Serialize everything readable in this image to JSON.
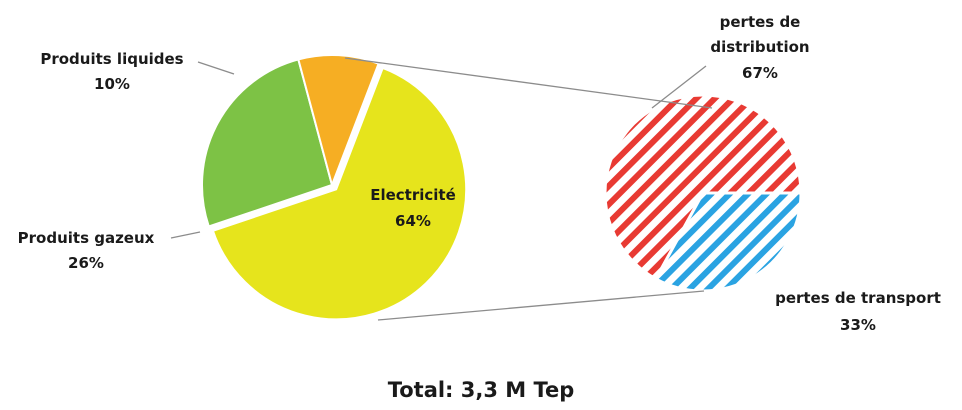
{
  "chart_data": [
    {
      "type": "pie",
      "categories": [
        "Electricité",
        "Produits liquides",
        "Produits gazeux"
      ],
      "values": [
        64,
        10,
        26
      ],
      "labels": [
        "Electricité 64%",
        "Produits liquides 10%",
        "Produits gazeux 26%"
      ],
      "colors": [
        "#e6e41c",
        "#f6ae23",
        "#7dc245"
      ],
      "exploded_category": "Electricité"
    },
    {
      "type": "pie",
      "categories": [
        "pertes de distribution",
        "pertes de transport"
      ],
      "values": [
        67,
        33
      ],
      "colors": [
        "#e83a33",
        "#2aa3e2"
      ],
      "pattern": "diagonal-stripes"
    }
  ],
  "labels": {
    "liquides_name": "Produits liquides",
    "liquides_pct": "10%",
    "gazeux_name": "Produits gazeux",
    "gazeux_pct": "26%",
    "electricite_name": "Electricité",
    "electricite_pct": "64%",
    "distribution_line1": "pertes de",
    "distribution_line2": "distribution",
    "distribution_pct": "67%",
    "transport_name": "pertes de transport",
    "transport_pct": "33%"
  },
  "total": "Total: 3,3 M Tep"
}
